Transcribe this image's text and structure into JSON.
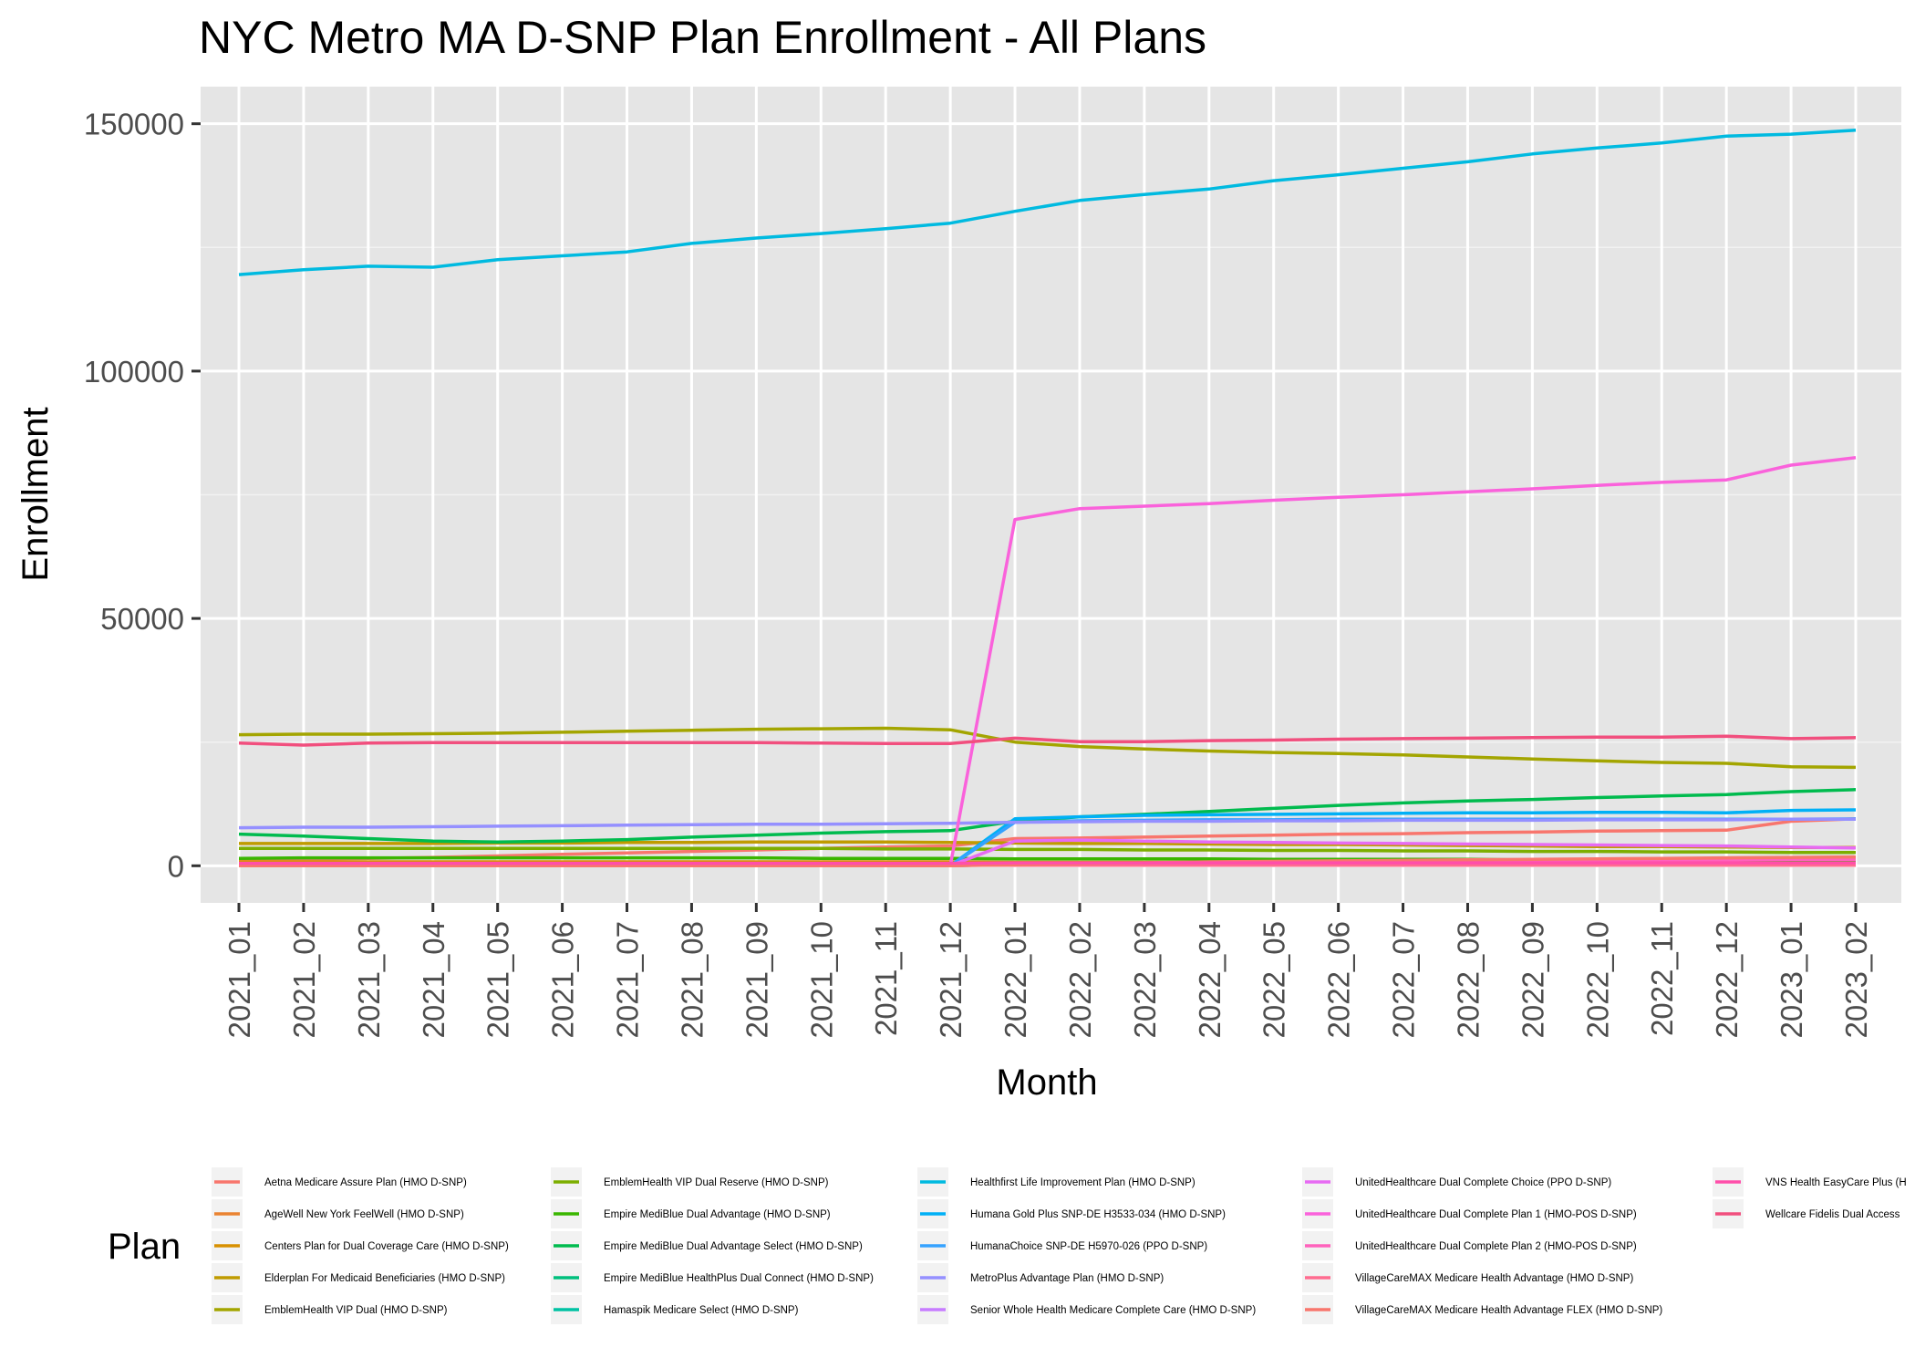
{
  "chart_data": {
    "type": "line",
    "title": "NYC Metro MA D-SNP Plan Enrollment - All Plans",
    "xlabel": "Month",
    "ylabel": "Enrollment",
    "legend_title": "Plan",
    "legend_position": "bottom",
    "grid": true,
    "ylim": [
      -7500,
      157500
    ],
    "y_ticks": [
      0,
      50000,
      100000,
      150000
    ],
    "y_tick_labels": [
      "0",
      "50000",
      "100000",
      "150000"
    ],
    "categories": [
      "2021_01",
      "2021_02",
      "2021_03",
      "2021_04",
      "2021_05",
      "2021_06",
      "2021_07",
      "2021_08",
      "2021_09",
      "2021_10",
      "2021_11",
      "2021_12",
      "2022_01",
      "2022_02",
      "2022_03",
      "2022_04",
      "2022_05",
      "2022_06",
      "2022_07",
      "2022_08",
      "2022_09",
      "2022_10",
      "2022_11",
      "2022_12",
      "2023_01",
      "2023_02"
    ],
    "series": [
      {
        "name": "Aetna Medicare Assure Plan (HMO D-SNP)",
        "color": "#F8766D",
        "values": [
          1200,
          1300,
          1500,
          1700,
          2000,
          2300,
          2600,
          2900,
          3200,
          3500,
          3800,
          4000,
          5500,
          5600,
          5800,
          6000,
          6200,
          6400,
          6500,
          6700,
          6800,
          7000,
          7100,
          7200,
          9000,
          9500
        ]
      },
      {
        "name": "AgeWell New York FeelWell (HMO D-SNP)",
        "color": "#EA8331",
        "values": [
          400,
          400,
          400,
          400,
          400,
          400,
          400,
          400,
          400,
          400,
          400,
          400,
          400,
          400,
          400,
          400,
          400,
          400,
          400,
          400,
          400,
          400,
          400,
          400,
          400,
          400
        ]
      },
      {
        "name": "Centers Plan for Dual Coverage Care (HMO D-SNP)",
        "color": "#D89000",
        "values": [
          800,
          800,
          800,
          800,
          800,
          800,
          800,
          800,
          800,
          800,
          800,
          800,
          700,
          700,
          700,
          700,
          700,
          700,
          700,
          700,
          700,
          700,
          700,
          700,
          700,
          700
        ]
      },
      {
        "name": "Elderplan For Medicaid Beneficiaries (HMO D-SNP)",
        "color": "#C09B00",
        "values": [
          4500,
          4500,
          4500,
          4500,
          4600,
          4600,
          4700,
          4700,
          4800,
          4800,
          4800,
          4700,
          4600,
          4500,
          4500,
          4400,
          4300,
          4300,
          4200,
          4100,
          4000,
          3900,
          3900,
          3800,
          3700,
          3700
        ]
      },
      {
        "name": "EmblemHealth VIP Dual (HMO D-SNP)",
        "color": "#A3A500",
        "values": [
          26500,
          26600,
          26600,
          26700,
          26800,
          27000,
          27200,
          27400,
          27600,
          27700,
          27800,
          27500,
          25000,
          24100,
          23600,
          23200,
          22900,
          22700,
          22400,
          22000,
          21600,
          21200,
          20900,
          20700,
          20000,
          19900
        ]
      },
      {
        "name": "EmblemHealth VIP Dual Reserve (HMO D-SNP)",
        "color": "#7CAE00",
        "values": [
          3500,
          3500,
          3500,
          3500,
          3500,
          3500,
          3500,
          3500,
          3500,
          3500,
          3400,
          3400,
          3300,
          3300,
          3200,
          3200,
          3100,
          3100,
          3000,
          3000,
          2900,
          2900,
          2800,
          2800,
          2700,
          2700
        ]
      },
      {
        "name": "Empire MediBlue Dual Advantage (HMO D-SNP)",
        "color": "#39B600",
        "values": [
          1500,
          1600,
          1600,
          1600,
          1600,
          1600,
          1600,
          1600,
          1600,
          1500,
          1500,
          1500,
          1400,
          1400,
          1400,
          1400,
          1300,
          1300,
          1300,
          1300,
          1200,
          1200,
          1200,
          1200,
          1100,
          1100
        ]
      },
      {
        "name": "Empire MediBlue Dual Advantage Select (HMO D-SNP)",
        "color": "#00BB4E",
        "values": [
          6400,
          6000,
          5500,
          5000,
          4800,
          5000,
          5300,
          5800,
          6200,
          6600,
          6900,
          7100,
          9000,
          9900,
          10400,
          11000,
          11600,
          12200,
          12700,
          13100,
          13400,
          13800,
          14100,
          14400,
          15000,
          15400
        ]
      },
      {
        "name": "Empire MediBlue HealthPlus Dual Connect (HMO D-SNP)",
        "color": "#00BF7D",
        "values": [
          0,
          0,
          0,
          0,
          0,
          0,
          0,
          0,
          0,
          0,
          0,
          0,
          300,
          400,
          500,
          600,
          700,
          800,
          900,
          1000,
          1100,
          1200,
          1300,
          1400,
          1500,
          1600
        ]
      },
      {
        "name": "Hamaspik Medicare Select (HMO D-SNP)",
        "color": "#00C1A3",
        "values": [
          200,
          200,
          200,
          200,
          200,
          200,
          200,
          200,
          200,
          200,
          200,
          200,
          200,
          200,
          200,
          200,
          200,
          200,
          200,
          200,
          200,
          200,
          200,
          200,
          200,
          200
        ]
      },
      {
        "name": "Healthfirst Life Improvement Plan (HMO D-SNP)",
        "color": "#00BAE0",
        "values": [
          119500,
          120500,
          121200,
          121000,
          122500,
          123300,
          124100,
          125800,
          126900,
          127800,
          128800,
          129900,
          132300,
          134500,
          135700,
          136800,
          138500,
          139700,
          141000,
          142300,
          143900,
          145100,
          146100,
          147500,
          147900,
          148700
        ]
      },
      {
        "name": "Humana Gold Plus SNP-DE H3533-034 (HMO D-SNP)",
        "color": "#00B0F6",
        "values": [
          0,
          0,
          0,
          0,
          0,
          0,
          0,
          0,
          0,
          0,
          0,
          0,
          9500,
          9900,
          10200,
          10300,
          10400,
          10500,
          10600,
          10700,
          10700,
          10800,
          10800,
          10700,
          11200,
          11300
        ]
      },
      {
        "name": "HumanaChoice SNP-DE H5970-026 (PPO D-SNP)",
        "color": "#35A2FF",
        "values": [
          0,
          0,
          0,
          0,
          0,
          0,
          0,
          0,
          0,
          0,
          0,
          0,
          8800,
          9100,
          9200,
          9300,
          9300,
          9400,
          9400,
          9400,
          9400,
          9400,
          9400,
          9400,
          9400,
          9500
        ]
      },
      {
        "name": "MetroPlus Advantage Plan (HMO D-SNP)",
        "color": "#9590FF",
        "values": [
          7700,
          7800,
          7800,
          7900,
          8000,
          8100,
          8200,
          8300,
          8400,
          8400,
          8500,
          8600,
          8800,
          8900,
          9000,
          9000,
          9100,
          9100,
          9200,
          9200,
          9200,
          9300,
          9300,
          9300,
          9400,
          9400
        ]
      },
      {
        "name": "Senior Whole Health Medicare Complete Care (HMO D-SNP)",
        "color": "#C77CFF",
        "values": [
          300,
          300,
          300,
          300,
          300,
          300,
          300,
          300,
          300,
          300,
          300,
          300,
          300,
          300,
          300,
          300,
          300,
          300,
          300,
          300,
          300,
          300,
          300,
          300,
          300,
          300
        ]
      },
      {
        "name": "UnitedHealthcare Dual Complete Choice (PPO D-SNP)",
        "color": "#E76BF3",
        "values": [
          0,
          0,
          0,
          0,
          0,
          0,
          0,
          0,
          0,
          0,
          0,
          0,
          5000,
          5200,
          5000,
          4800,
          4700,
          4600,
          4500,
          4400,
          4300,
          4200,
          4100,
          4000,
          3800,
          3600
        ]
      },
      {
        "name": "UnitedHealthcare Dual Complete Plan 1 (HMO-POS D-SNP)",
        "color": "#FA62DB",
        "values": [
          0,
          0,
          0,
          0,
          0,
          0,
          0,
          0,
          0,
          0,
          0,
          0,
          70000,
          72200,
          72700,
          73200,
          73900,
          74500,
          75000,
          75600,
          76200,
          76900,
          77500,
          78000,
          81000,
          82500
        ]
      },
      {
        "name": "UnitedHealthcare Dual Complete Plan 2 (HMO-POS D-SNP)",
        "color": "#FF62BC",
        "values": [
          0,
          0,
          0,
          0,
          0,
          0,
          0,
          0,
          0,
          0,
          0,
          0,
          300,
          400,
          500,
          600,
          700,
          800,
          900,
          1000,
          1100,
          1100,
          1200,
          1200,
          1300,
          1300
        ]
      },
      {
        "name": "VillageCareMAX Medicare Health Advantage (HMO D-SNP)",
        "color": "#FF6C90",
        "values": [
          100,
          100,
          100,
          100,
          100,
          100,
          100,
          100,
          100,
          100,
          100,
          100,
          100,
          100,
          100,
          100,
          100,
          100,
          100,
          100,
          100,
          100,
          100,
          100,
          100,
          100
        ]
      },
      {
        "name": "VillageCareMAX Medicare Health Advantage FLEX (HMO D-SNP)",
        "color": "#F8766D",
        "values": [
          0,
          0,
          0,
          0,
          0,
          0,
          0,
          0,
          0,
          0,
          0,
          0,
          200,
          400,
          600,
          800,
          900,
          1000,
          1100,
          1200,
          1300,
          1400,
          1500,
          1600,
          1700,
          1800
        ]
      },
      {
        "name": "VNS Health EasyCare Plus (H",
        "color": "#FF4FAA",
        "values": [
          500,
          500,
          500,
          500,
          500,
          500,
          500,
          500,
          500,
          500,
          500,
          500,
          600,
          600,
          600,
          600,
          600,
          600,
          600,
          600,
          600,
          600,
          600,
          600,
          600,
          600
        ]
      },
      {
        "name": "Wellcare Fidelis Dual Access",
        "color": "#F14F7E",
        "values": [
          24800,
          24400,
          24800,
          24900,
          24900,
          24900,
          24900,
          24900,
          24900,
          24800,
          24700,
          24700,
          25800,
          25100,
          25100,
          25300,
          25400,
          25600,
          25700,
          25800,
          25900,
          26000,
          26000,
          26200,
          25700,
          25900
        ]
      }
    ]
  }
}
